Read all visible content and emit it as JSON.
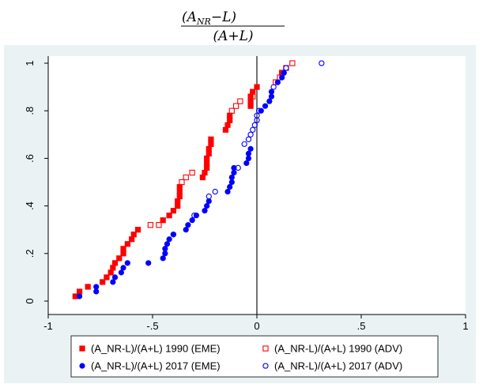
{
  "chart_data": {
    "type": "scatter",
    "title": {
      "numerator_main": "(A",
      "numerator_sub": "NR",
      "numerator_rest": "−L)",
      "denominator": "(A+L)"
    },
    "xlim": [
      -1,
      1
    ],
    "ylim": [
      0,
      1
    ],
    "x_ticks": [
      -1,
      -0.5,
      0,
      0.5,
      1
    ],
    "x_tick_labels": [
      "-1",
      "-.5",
      "0",
      ".5",
      "1"
    ],
    "y_ticks": [
      0,
      0.2,
      0.4,
      0.6,
      0.8,
      1
    ],
    "y_tick_labels": [
      "0",
      ".2",
      ".4",
      ".6",
      ".8",
      "1"
    ],
    "vertical_line_x": 0,
    "grid": false,
    "legend_position": "bottom",
    "series": [
      {
        "name": "(A_NR-L)/(A+L) 1990 (EME)",
        "color": "#ff0000",
        "marker": "square-filled",
        "points": [
          [
            -0.87,
            0.02
          ],
          [
            -0.85,
            0.04
          ],
          [
            -0.81,
            0.06
          ],
          [
            -0.74,
            0.08
          ],
          [
            -0.72,
            0.1
          ],
          [
            -0.7,
            0.12
          ],
          [
            -0.69,
            0.14
          ],
          [
            -0.68,
            0.16
          ],
          [
            -0.66,
            0.18
          ],
          [
            -0.64,
            0.2
          ],
          [
            -0.64,
            0.22
          ],
          [
            -0.62,
            0.24
          ],
          [
            -0.6,
            0.26
          ],
          [
            -0.59,
            0.28
          ],
          [
            -0.57,
            0.3
          ],
          [
            -0.45,
            0.34
          ],
          [
            -0.42,
            0.36
          ],
          [
            -0.4,
            0.38
          ],
          [
            -0.38,
            0.4
          ],
          [
            -0.38,
            0.42
          ],
          [
            -0.37,
            0.44
          ],
          [
            -0.37,
            0.46
          ],
          [
            -0.37,
            0.48
          ],
          [
            -0.26,
            0.52
          ],
          [
            -0.25,
            0.54
          ],
          [
            -0.24,
            0.56
          ],
          [
            -0.24,
            0.58
          ],
          [
            -0.24,
            0.6
          ],
          [
            -0.23,
            0.62
          ],
          [
            -0.23,
            0.64
          ],
          [
            -0.22,
            0.66
          ],
          [
            -0.22,
            0.68
          ],
          [
            -0.15,
            0.72
          ],
          [
            -0.14,
            0.74
          ],
          [
            -0.13,
            0.76
          ],
          [
            -0.13,
            0.78
          ],
          [
            -0.03,
            0.82
          ],
          [
            -0.03,
            0.84
          ],
          [
            -0.03,
            0.86
          ],
          [
            -0.02,
            0.88
          ],
          [
            0.0,
            0.9
          ],
          [
            0.12,
            0.96
          ]
        ]
      },
      {
        "name": "(A_NR-L)/(A+L) 1990 (ADV)",
        "color": "#ff0000",
        "marker": "square-hollow",
        "points": [
          [
            -0.51,
            0.32
          ],
          [
            -0.47,
            0.32
          ],
          [
            -0.36,
            0.5
          ],
          [
            -0.34,
            0.52
          ],
          [
            -0.31,
            0.54
          ],
          [
            -0.12,
            0.8
          ],
          [
            -0.1,
            0.82
          ],
          [
            -0.08,
            0.84
          ],
          [
            -0.02,
            0.86
          ],
          [
            0.12,
            0.96
          ],
          [
            0.17,
            1.0
          ],
          [
            0.09,
            0.92
          ],
          [
            0.11,
            0.94
          ],
          [
            0.14,
            0.98
          ]
        ]
      },
      {
        "name": "(A_NR-L)/(A+L) 2017 (EME)",
        "color": "#0000ff",
        "marker": "circle-filled",
        "points": [
          [
            -0.85,
            0.02
          ],
          [
            -0.77,
            0.04
          ],
          [
            -0.77,
            0.06
          ],
          [
            -0.69,
            0.08
          ],
          [
            -0.68,
            0.1
          ],
          [
            -0.65,
            0.12
          ],
          [
            -0.64,
            0.14
          ],
          [
            -0.62,
            0.16
          ],
          [
            -0.52,
            0.16
          ],
          [
            -0.45,
            0.18
          ],
          [
            -0.44,
            0.2
          ],
          [
            -0.44,
            0.22
          ],
          [
            -0.43,
            0.24
          ],
          [
            -0.42,
            0.26
          ],
          [
            -0.4,
            0.28
          ],
          [
            -0.34,
            0.3
          ],
          [
            -0.33,
            0.32
          ],
          [
            -0.31,
            0.34
          ],
          [
            -0.29,
            0.36
          ],
          [
            -0.25,
            0.38
          ],
          [
            -0.24,
            0.4
          ],
          [
            -0.23,
            0.42
          ],
          [
            -0.14,
            0.46
          ],
          [
            -0.13,
            0.48
          ],
          [
            -0.12,
            0.5
          ],
          [
            -0.12,
            0.52
          ],
          [
            -0.11,
            0.54
          ],
          [
            -0.11,
            0.56
          ],
          [
            -0.05,
            0.58
          ],
          [
            -0.04,
            0.6
          ],
          [
            -0.04,
            0.62
          ],
          [
            -0.03,
            0.64
          ],
          [
            0.02,
            0.8
          ],
          [
            0.04,
            0.82
          ],
          [
            0.06,
            0.84
          ],
          [
            0.07,
            0.86
          ],
          [
            0.07,
            0.88
          ],
          [
            0.1,
            0.92
          ],
          [
            0.12,
            0.94
          ],
          [
            0.13,
            0.96
          ]
        ]
      },
      {
        "name": "(A_NR-L)/(A+L) 2017 (ADV)",
        "color": "#0000ff",
        "marker": "circle-hollow",
        "points": [
          [
            -0.4,
            0.28
          ],
          [
            -0.3,
            0.36
          ],
          [
            -0.23,
            0.44
          ],
          [
            -0.2,
            0.46
          ],
          [
            -0.09,
            0.56
          ],
          [
            -0.06,
            0.66
          ],
          [
            -0.04,
            0.68
          ],
          [
            -0.03,
            0.7
          ],
          [
            -0.02,
            0.72
          ],
          [
            -0.01,
            0.74
          ],
          [
            0.0,
            0.76
          ],
          [
            0.0,
            0.78
          ],
          [
            0.01,
            0.8
          ],
          [
            0.08,
            0.9
          ],
          [
            0.14,
            0.98
          ],
          [
            0.31,
            1.0
          ]
        ]
      }
    ]
  }
}
